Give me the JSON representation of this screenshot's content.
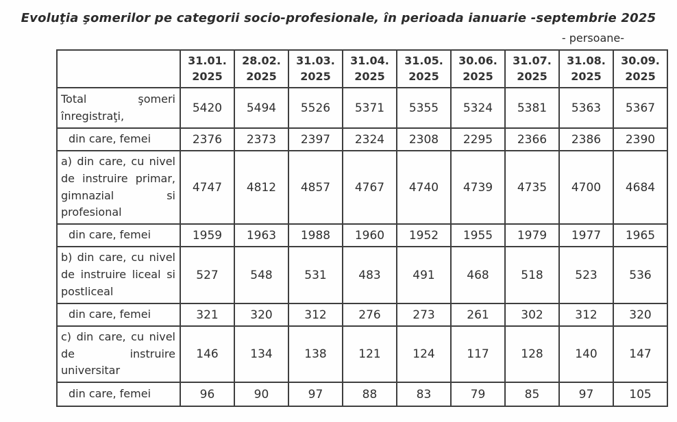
{
  "page": {
    "title": "Evoluţia şomerilor pe categorii socio-profesionale, în perioada ianuarie -septembrie 2025",
    "unit_label": "- persoane-"
  },
  "table": {
    "columns": [
      {
        "date": "31.01.",
        "year": "2025"
      },
      {
        "date": "28.02.",
        "year": "2025"
      },
      {
        "date": "31.03.",
        "year": "2025"
      },
      {
        "date": "31.04.",
        "year": "2025"
      },
      {
        "date": "31.05.",
        "year": "2025"
      },
      {
        "date": "30.06.",
        "year": "2025"
      },
      {
        "date": "31.07.",
        "year": "2025"
      },
      {
        "date": "31.08.",
        "year": "2025"
      },
      {
        "date": "30.09.",
        "year": "2025"
      }
    ],
    "rows": [
      {
        "label": "Total şomeri înregistraţi,",
        "indent": false,
        "values": [
          5420,
          5494,
          5526,
          5371,
          5355,
          5324,
          5381,
          5363,
          5367
        ]
      },
      {
        "label": "din care, femei",
        "indent": true,
        "values": [
          2376,
          2373,
          2397,
          2324,
          2308,
          2295,
          2366,
          2386,
          2390
        ]
      },
      {
        "label": "a) din care, cu nivel de instruire primar, gimnazial si profesional",
        "indent": false,
        "values": [
          4747,
          4812,
          4857,
          4767,
          4740,
          4739,
          4735,
          4700,
          4684
        ]
      },
      {
        "label": "din care, femei",
        "indent": true,
        "values": [
          1959,
          1963,
          1988,
          1960,
          1952,
          1955,
          1979,
          1977,
          1965
        ]
      },
      {
        "label": "b) din care, cu nivel de instruire liceal si postliceal",
        "indent": false,
        "values": [
          527,
          548,
          531,
          483,
          491,
          468,
          518,
          523,
          536
        ]
      },
      {
        "label": "din care, femei",
        "indent": true,
        "values": [
          321,
          320,
          312,
          276,
          273,
          261,
          302,
          312,
          320
        ]
      },
      {
        "label": "c) din care, cu nivel de instruire universitar",
        "indent": false,
        "values": [
          146,
          134,
          138,
          121,
          124,
          117,
          128,
          140,
          147
        ]
      },
      {
        "label": "din care, femei",
        "indent": true,
        "values": [
          96,
          90,
          97,
          88,
          83,
          79,
          85,
          97,
          105
        ]
      }
    ]
  }
}
